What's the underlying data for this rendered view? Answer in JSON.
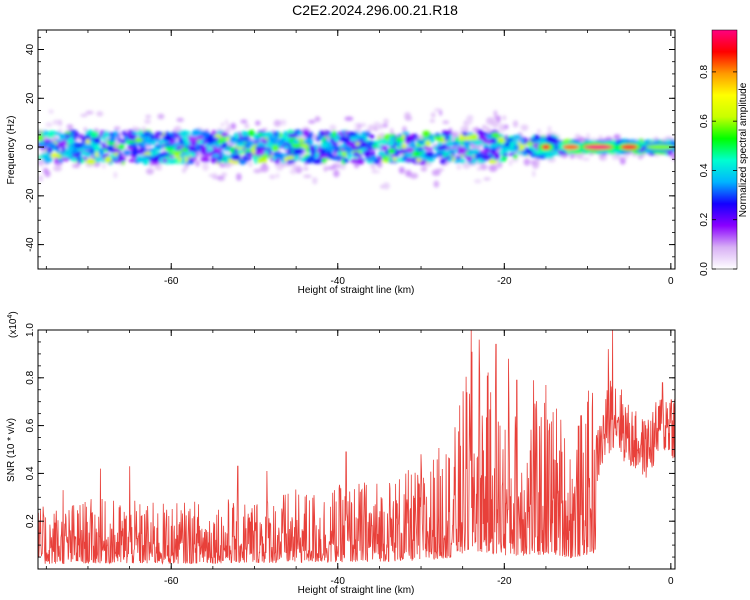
{
  "title": "C2E2.2024.296.00.21.R18",
  "chart_data": [
    {
      "type": "heatmap",
      "xlabel": "Height of straight line (km)",
      "ylabel": "Frequency (Hz)",
      "xlim": [
        -76,
        0.5
      ],
      "ylim": [
        -50,
        48
      ],
      "x_ticks": [
        -60,
        -40,
        -20,
        0
      ],
      "y_ticks": [
        -40,
        -20,
        0,
        20,
        40
      ],
      "x_tick_labels": [
        "-60",
        "-40",
        "-20",
        "0"
      ],
      "y_tick_labels": [
        "-40",
        "-20",
        "0",
        "20",
        "40"
      ],
      "band_center_hz": 0,
      "band_halfwidth_hz": 6,
      "strong_segments": [
        {
          "x_start": -15.5,
          "x_end": -14.5,
          "amplitude": 0.95
        },
        {
          "x_start": -13,
          "x_end": -11,
          "amplitude": 0.85
        },
        {
          "x_start": -10.5,
          "x_end": -7,
          "amplitude": 1.0
        },
        {
          "x_start": -6,
          "x_end": -4,
          "amplitude": 0.95
        },
        {
          "x_start": -3,
          "x_end": 0.5,
          "amplitude": 0.6
        }
      ],
      "colorbar": {
        "label": "Normalized spectral amplitude",
        "range": [
          0,
          0.97
        ],
        "ticks": [
          0.0,
          0.2,
          0.4,
          0.6,
          0.8
        ],
        "tick_labels": [
          "0.0",
          "0.2",
          "0.4",
          "0.6",
          "0.8"
        ],
        "colors": [
          "#ffffff",
          "#d8b0f5",
          "#8a00ff",
          "#1400ff",
          "#00b4ff",
          "#00ffd0",
          "#00ff00",
          "#c8ff00",
          "#ffff00",
          "#ff9900",
          "#ff0000",
          "#ff0080"
        ]
      },
      "grid": false
    },
    {
      "type": "line",
      "xlabel": "Height of straight line (km)",
      "ylabel": "SNR (10 * v/v)",
      "multiplier_label": "(x10",
      "multiplier_exponent": "4",
      "xlim": [
        -76,
        0.5
      ],
      "ylim": [
        0,
        1.0
      ],
      "x_ticks": [
        -60,
        -40,
        -20,
        0
      ],
      "y_ticks": [
        0.2,
        0.4,
        0.6,
        0.8,
        1.0
      ],
      "x_tick_labels": [
        "-60",
        "-40",
        "-20",
        "0"
      ],
      "y_tick_labels": [
        "0.2",
        "0.4",
        "0.6",
        "0.8",
        "1.0"
      ],
      "line_color": "#e8403a",
      "envelope": {
        "x": [
          -76,
          -70,
          -60,
          -50,
          -40,
          -30,
          -26,
          -24,
          -22,
          -20,
          -18,
          -14,
          -12,
          -9,
          -7,
          -5,
          -3,
          -1,
          0,
          0.5
        ],
        "y": [
          0.14,
          0.16,
          0.15,
          0.17,
          0.19,
          0.23,
          0.32,
          0.5,
          0.45,
          0.38,
          0.37,
          0.4,
          0.3,
          0.45,
          0.68,
          0.55,
          0.5,
          0.6,
          0.62,
          0.6
        ]
      },
      "peaks": [
        {
          "x": -73,
          "y": 0.33
        },
        {
          "x": -68.5,
          "y": 0.42
        },
        {
          "x": -65,
          "y": 0.43
        },
        {
          "x": -52,
          "y": 0.43
        },
        {
          "x": -48.5,
          "y": 0.41
        },
        {
          "x": -39,
          "y": 0.49
        },
        {
          "x": -30,
          "y": 0.48
        },
        {
          "x": -27,
          "y": 0.48
        },
        {
          "x": -24,
          "y": 1.0
        },
        {
          "x": -23,
          "y": 0.96
        },
        {
          "x": -21,
          "y": 0.94
        },
        {
          "x": -19.5,
          "y": 0.88
        },
        {
          "x": -18.5,
          "y": 0.79
        },
        {
          "x": -16.5,
          "y": 0.79
        },
        {
          "x": -15,
          "y": 0.77
        },
        {
          "x": -7.5,
          "y": 0.92
        },
        {
          "x": -7,
          "y": 1.0
        },
        {
          "x": -1,
          "y": 0.78
        }
      ],
      "grid": false
    }
  ]
}
